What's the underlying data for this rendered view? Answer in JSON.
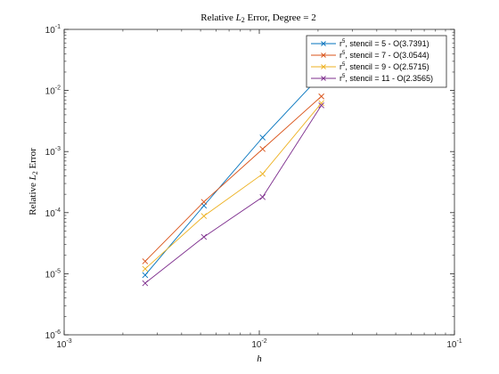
{
  "chart_data": {
    "type": "line",
    "title_prefix": "Relative ",
    "title_var": "L",
    "title_sub": "2",
    "title_suffix": " Error, Degree = 2",
    "xlabel": "h",
    "ylabel_prefix": "Relative ",
    "ylabel_var": "L",
    "ylabel_sub": "2",
    "ylabel_suffix": " Error",
    "xscale": "log",
    "yscale": "log",
    "xlim": [
      0.001,
      0.1
    ],
    "ylim": [
      1e-06,
      0.1
    ],
    "x_ticks": [
      0.001,
      0.01,
      0.1
    ],
    "y_ticks": [
      1e-06,
      1e-05,
      0.0001,
      0.001,
      0.01,
      0.1
    ],
    "grid": false,
    "legend_position": "top-right",
    "marker": "x",
    "x": [
      0.0026,
      0.0052,
      0.0104,
      0.0208
    ],
    "series": [
      {
        "legend_sup": "5",
        "legend_rest": ", stencil = 5 - O(3.7391)",
        "color": "#0072BD",
        "values": [
          9.5e-06,
          0.00013,
          0.0017,
          0.018
        ]
      },
      {
        "legend_sup": "5",
        "legend_rest": ", stencil = 7 - O(3.0544)",
        "color": "#D95319",
        "values": [
          1.6e-05,
          0.00015,
          0.0011,
          0.008
        ]
      },
      {
        "legend_sup": "5",
        "legend_rest": ", stencil = 9 - O(2.5715)",
        "color": "#EDB120",
        "values": [
          1.2e-05,
          8.8e-05,
          0.00043,
          0.0062
        ]
      },
      {
        "legend_sup": "5",
        "legend_rest": ", stencil = 11 - O(2.3565)",
        "color": "#7E2F8E",
        "values": [
          7e-06,
          4e-05,
          0.00018,
          0.0057
        ]
      }
    ],
    "legend_prefix": "r"
  }
}
